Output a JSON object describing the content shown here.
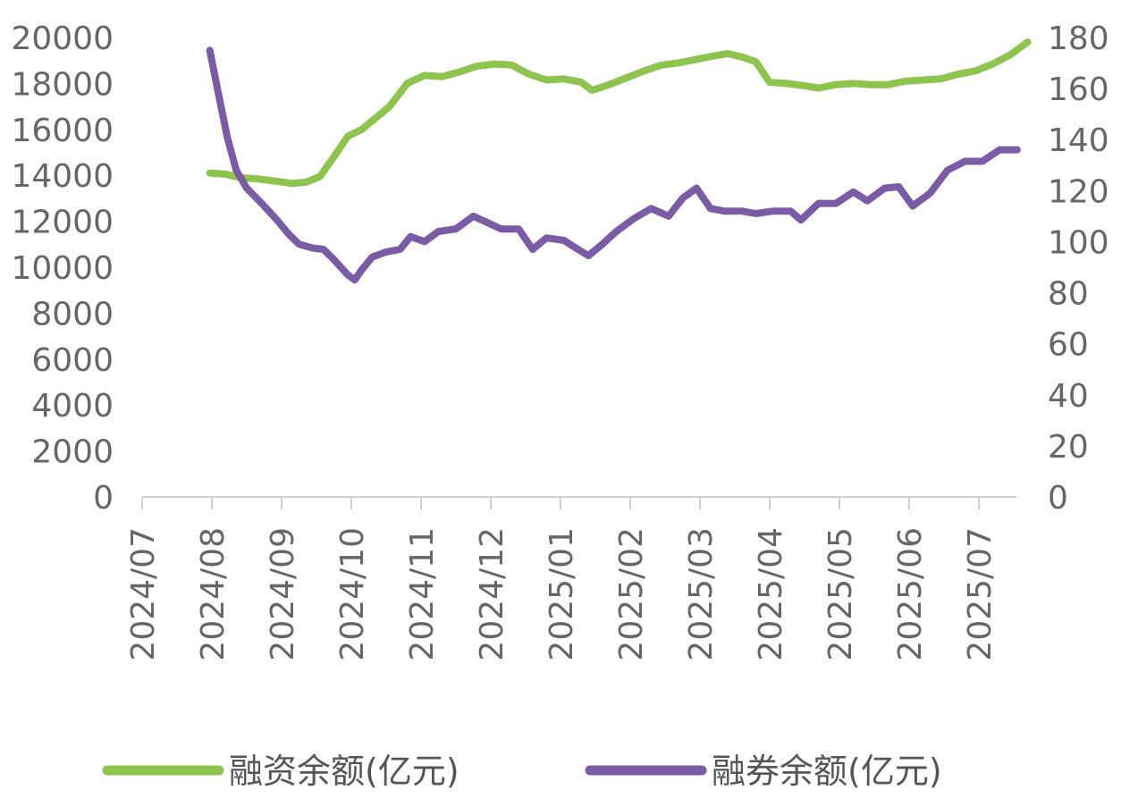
{
  "chart_data": {
    "type": "line",
    "x_ticks": [
      "2024/07",
      "2024/08",
      "2024/09",
      "2024/10",
      "2024/11",
      "2024/12",
      "2025/01",
      "2025/02",
      "2025/03",
      "2025/04",
      "2025/05",
      "2025/06",
      "2025/07"
    ],
    "x_range": [
      0,
      12.7
    ],
    "y_left": {
      "range": [
        0,
        20000
      ],
      "ticks": [
        0,
        2000,
        4000,
        6000,
        8000,
        10000,
        12000,
        14000,
        16000,
        18000,
        20000
      ]
    },
    "y_right": {
      "range": [
        0,
        180
      ],
      "ticks": [
        0,
        20,
        40,
        60,
        80,
        100,
        120,
        140,
        160,
        180
      ]
    },
    "legend_position": "bottom",
    "grid": false,
    "series": [
      {
        "name": "融资余额(亿元)",
        "axis": "left",
        "color": "#8dc44e",
        "points": [
          [
            0.97,
            14100
          ],
          [
            1.2,
            14050
          ],
          [
            1.4,
            13900
          ],
          [
            1.65,
            13850
          ],
          [
            1.9,
            13750
          ],
          [
            2.15,
            13650
          ],
          [
            2.35,
            13700
          ],
          [
            2.55,
            13950
          ],
          [
            2.75,
            14800
          ],
          [
            2.95,
            15700
          ],
          [
            3.15,
            16000
          ],
          [
            3.35,
            16500
          ],
          [
            3.55,
            17000
          ],
          [
            3.8,
            18000
          ],
          [
            4.05,
            18350
          ],
          [
            4.3,
            18300
          ],
          [
            4.55,
            18500
          ],
          [
            4.8,
            18750
          ],
          [
            5.05,
            18850
          ],
          [
            5.3,
            18800
          ],
          [
            5.55,
            18400
          ],
          [
            5.8,
            18150
          ],
          [
            6.05,
            18200
          ],
          [
            6.3,
            18050
          ],
          [
            6.45,
            17700
          ],
          [
            6.7,
            17950
          ],
          [
            6.95,
            18250
          ],
          [
            7.2,
            18550
          ],
          [
            7.45,
            18800
          ],
          [
            7.7,
            18900
          ],
          [
            7.95,
            19050
          ],
          [
            8.2,
            19200
          ],
          [
            8.4,
            19300
          ],
          [
            8.6,
            19150
          ],
          [
            8.8,
            18950
          ],
          [
            9.0,
            18050
          ],
          [
            9.25,
            18000
          ],
          [
            9.5,
            17900
          ],
          [
            9.7,
            17800
          ],
          [
            9.95,
            17950
          ],
          [
            10.2,
            18000
          ],
          [
            10.45,
            17950
          ],
          [
            10.7,
            17950
          ],
          [
            10.95,
            18100
          ],
          [
            11.2,
            18150
          ],
          [
            11.45,
            18200
          ],
          [
            11.7,
            18400
          ],
          [
            11.95,
            18550
          ],
          [
            12.2,
            18850
          ],
          [
            12.45,
            19250
          ],
          [
            12.7,
            19800
          ]
        ]
      },
      {
        "name": "融券余额(亿元)",
        "axis": "right",
        "color": "#7b5ba6",
        "points": [
          [
            0.97,
            175
          ],
          [
            1.08,
            160
          ],
          [
            1.22,
            141
          ],
          [
            1.35,
            128
          ],
          [
            1.5,
            121
          ],
          [
            1.75,
            114
          ],
          [
            1.95,
            108
          ],
          [
            2.1,
            103
          ],
          [
            2.25,
            99
          ],
          [
            2.45,
            97.5
          ],
          [
            2.6,
            97
          ],
          [
            2.75,
            93
          ],
          [
            2.95,
            87
          ],
          [
            3.05,
            85
          ],
          [
            3.15,
            89
          ],
          [
            3.3,
            94
          ],
          [
            3.5,
            96
          ],
          [
            3.7,
            97
          ],
          [
            3.85,
            102
          ],
          [
            4.05,
            100
          ],
          [
            4.25,
            104
          ],
          [
            4.5,
            105
          ],
          [
            4.75,
            110
          ],
          [
            4.95,
            107.5
          ],
          [
            5.15,
            105
          ],
          [
            5.4,
            105
          ],
          [
            5.6,
            97
          ],
          [
            5.8,
            101.5
          ],
          [
            6.05,
            100.5
          ],
          [
            6.25,
            97
          ],
          [
            6.4,
            94.5
          ],
          [
            6.6,
            99
          ],
          [
            6.8,
            104
          ],
          [
            7.05,
            109
          ],
          [
            7.3,
            113
          ],
          [
            7.55,
            110
          ],
          [
            7.75,
            117
          ],
          [
            7.95,
            121
          ],
          [
            8.15,
            113
          ],
          [
            8.35,
            112
          ],
          [
            8.6,
            112
          ],
          [
            8.8,
            111
          ],
          [
            9.05,
            112
          ],
          [
            9.3,
            112
          ],
          [
            9.45,
            108.5
          ],
          [
            9.7,
            115
          ],
          [
            9.95,
            115
          ],
          [
            10.2,
            119.5
          ],
          [
            10.4,
            116
          ],
          [
            10.65,
            121
          ],
          [
            10.85,
            121.5
          ],
          [
            11.05,
            114
          ],
          [
            11.3,
            119
          ],
          [
            11.55,
            128
          ],
          [
            11.8,
            131.5
          ],
          [
            12.05,
            131.5
          ],
          [
            12.3,
            136
          ],
          [
            12.55,
            136
          ]
        ]
      }
    ]
  }
}
